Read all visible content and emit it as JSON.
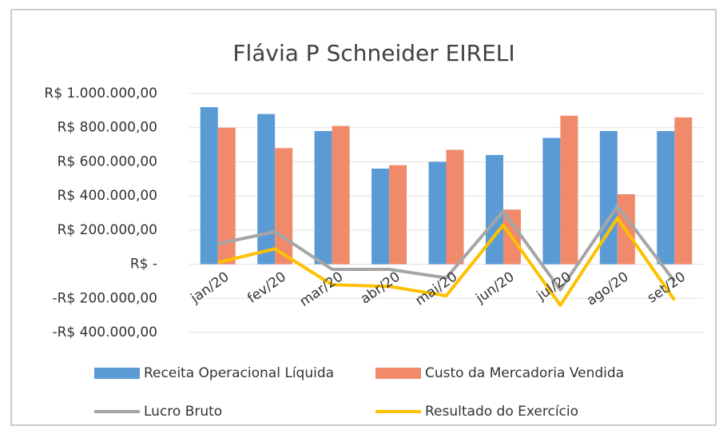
{
  "chart_data": {
    "type": "bar_line",
    "title": "Flávia P Schneider EIRELI",
    "categories": [
      "jan/20",
      "fev/20",
      "mar/20",
      "abr/20",
      "mai/20",
      "jun/20",
      "jul/20",
      "ago/20",
      "set/20"
    ],
    "series": [
      {
        "name": "Receita Operacional Líquida",
        "type": "bar",
        "color": "#5b9bd5",
        "values": [
          920000,
          880000,
          780000,
          560000,
          600000,
          640000,
          740000,
          780000,
          780000
        ]
      },
      {
        "name": "Custo da Mercadoria Vendida",
        "type": "bar",
        "color": "#f08a6a",
        "values": [
          800000,
          680000,
          810000,
          580000,
          670000,
          320000,
          870000,
          410000,
          860000
        ]
      },
      {
        "name": "Lucro Bruto",
        "type": "line",
        "color": "#a5a5a5",
        "values": [
          120000,
          190000,
          -30000,
          -30000,
          -80000,
          310000,
          -150000,
          340000,
          -100000
        ]
      },
      {
        "name": "Resultado do Exercício",
        "type": "line",
        "color": "#ffc000",
        "values": [
          10000,
          90000,
          -120000,
          -130000,
          -185000,
          230000,
          -240000,
          270000,
          -210000
        ]
      }
    ],
    "ylim": [
      -400000,
      1000000
    ],
    "yticks": [
      {
        "value": 1000000,
        "label": "R$ 1.000.000,00"
      },
      {
        "value": 800000,
        "label": "R$ 800.000,00"
      },
      {
        "value": 600000,
        "label": "R$ 600.000,00"
      },
      {
        "value": 400000,
        "label": "R$ 400.000,00"
      },
      {
        "value": 200000,
        "label": "R$ 200.000,00"
      },
      {
        "value": 0,
        "label": "R$ -"
      },
      {
        "value": -200000,
        "label": "-R$ 200.000,00"
      },
      {
        "value": -400000,
        "label": "-R$ 400.000,00"
      }
    ],
    "grid": true
  }
}
